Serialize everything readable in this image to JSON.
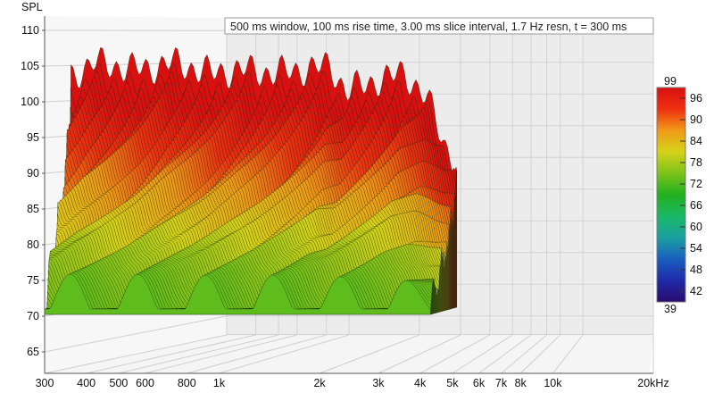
{
  "chart_data": {
    "type": "waterfall",
    "title": "500 ms window, 100 ms rise time, 3.00 ms slice interval, 1.7 Hz resn, t = 300 ms",
    "ylabel": "SPL",
    "xlabel_unit": "kHz",
    "x_scale": "log",
    "xlim": [
      300,
      20000
    ],
    "ylim": [
      62,
      112
    ],
    "y_ticks": [
      65,
      70,
      75,
      80,
      85,
      90,
      95,
      100,
      105,
      110
    ],
    "x_ticks": [
      {
        "value": 300,
        "label": "300"
      },
      {
        "value": 400,
        "label": "400"
      },
      {
        "value": 500,
        "label": "500"
      },
      {
        "value": 600,
        "label": "600"
      },
      {
        "value": 800,
        "label": "800"
      },
      {
        "value": 1000,
        "label": "1k"
      },
      {
        "value": 2000,
        "label": "2k"
      },
      {
        "value": 3000,
        "label": "3k"
      },
      {
        "value": 4000,
        "label": "4k"
      },
      {
        "value": 5000,
        "label": "5k"
      },
      {
        "value": 6000,
        "label": "6k"
      },
      {
        "value": 7000,
        "label": "7k"
      },
      {
        "value": 8000,
        "label": "8k"
      },
      {
        "value": 10000,
        "label": "10k"
      },
      {
        "value": 20000,
        "label": "20kHz"
      }
    ],
    "colorbar": {
      "min": 39,
      "max": 99,
      "ticks": [
        42,
        48,
        54,
        60,
        66,
        72,
        78,
        84,
        90,
        96
      ],
      "min_label": "39",
      "max_label": "99",
      "colors": [
        "#2a0a6e",
        "#1f2aa8",
        "#1a5fbf",
        "#1aa0a0",
        "#1bb866",
        "#22b020",
        "#7cc21a",
        "#d6d21a",
        "#f09a18",
        "#ee3010",
        "#d81010"
      ]
    },
    "first_slice_envelope": {
      "freq": [
        300,
        350,
        400,
        500,
        600,
        800,
        1000,
        1200,
        1500,
        1800,
        2000,
        2500,
        3000,
        3500,
        4000,
        4300
      ],
      "spl": [
        103.5,
        105.5,
        105,
        104.5,
        105.5,
        104,
        104.5,
        104,
        104.5,
        105,
        101.5,
        103,
        104,
        100.5,
        93.5,
        91
      ]
    },
    "last_slice_floor_spl": 73,
    "slice_count": 100
  }
}
